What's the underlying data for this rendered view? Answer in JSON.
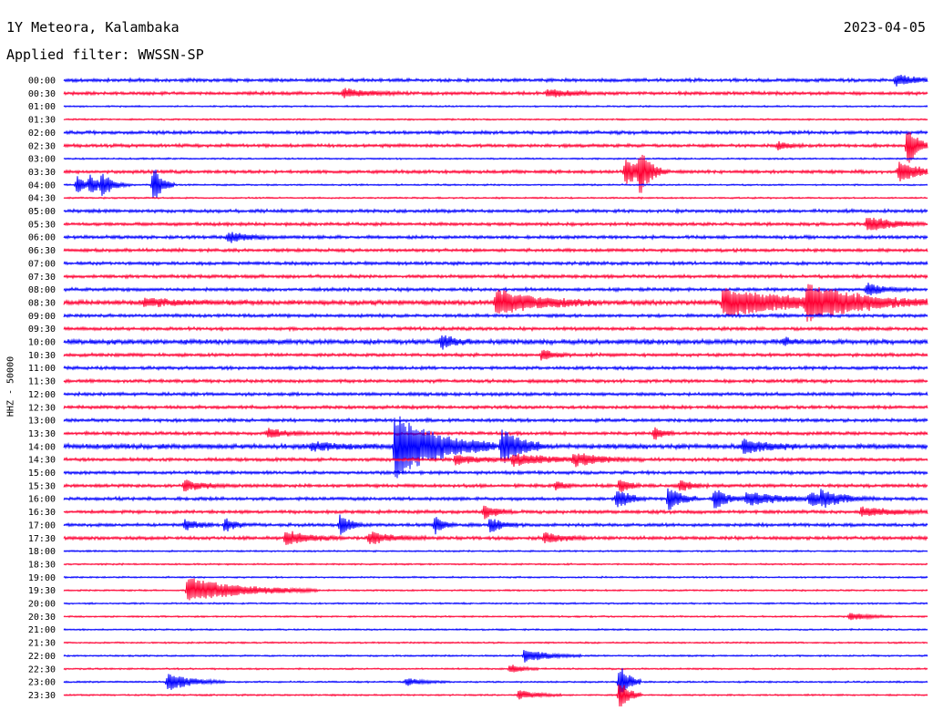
{
  "header": {
    "station": "1Y Meteora, Kalambaka",
    "date": "2023-04-05",
    "filter": "Applied filter: WWSSN-SP"
  },
  "axis_label": "HHZ - 50000",
  "colors": {
    "even": "#0000ff",
    "odd": "#ff0033"
  },
  "chart_data": {
    "type": "line",
    "title": "1Y Meteora, Kalambaka",
    "subtitle": "Applied filter: WWSSN-SP",
    "channel": "HHZ",
    "ylabel": "HHZ - 50000",
    "x_unit": "minutes after row start",
    "xlim": [
      0,
      30
    ],
    "grid": false,
    "row_labels": [
      "00:00",
      "00:30",
      "01:00",
      "01:30",
      "02:00",
      "02:30",
      "03:00",
      "03:30",
      "04:00",
      "04:30",
      "05:00",
      "05:30",
      "06:00",
      "06:30",
      "07:00",
      "07:30",
      "08:00",
      "08:30",
      "09:00",
      "09:30",
      "10:00",
      "10:30",
      "11:00",
      "11:30",
      "12:00",
      "12:30",
      "13:00",
      "13:30",
      "14:00",
      "14:30",
      "15:00",
      "15:30",
      "16:00",
      "16:30",
      "17:00",
      "17:30",
      "18:00",
      "18:30",
      "19:00",
      "19:30",
      "20:00",
      "20:30",
      "21:00",
      "21:30",
      "22:00",
      "22:30",
      "23:00",
      "23:30"
    ],
    "row_noise": [
      2,
      2,
      1,
      1,
      2,
      2,
      1,
      2,
      1,
      1,
      2,
      2,
      2,
      2,
      2,
      2,
      2,
      3,
      2,
      2,
      3,
      2,
      2,
      2,
      2,
      2,
      2,
      2,
      3,
      2,
      2,
      2,
      2,
      2,
      2,
      2,
      1,
      1,
      1,
      1,
      1,
      1,
      1,
      1,
      1,
      1,
      1,
      1
    ],
    "events": [
      {
        "row": "00:00",
        "t": 28.9,
        "amp": 6,
        "dur": 0.6
      },
      {
        "row": "00:30",
        "t": 9.7,
        "amp": 5,
        "dur": 0.8
      },
      {
        "row": "00:30",
        "t": 16.8,
        "amp": 4,
        "dur": 0.8
      },
      {
        "row": "02:30",
        "t": 24.8,
        "amp": 4,
        "dur": 0.4
      },
      {
        "row": "02:30",
        "t": 29.3,
        "amp": 26,
        "dur": 0.3
      },
      {
        "row": "03:30",
        "t": 19.5,
        "amp": 14,
        "dur": 0.6
      },
      {
        "row": "03:30",
        "t": 20.0,
        "amp": 22,
        "dur": 0.3
      },
      {
        "row": "03:30",
        "t": 29.0,
        "amp": 10,
        "dur": 0.8
      },
      {
        "row": "04:00",
        "t": 0.45,
        "amp": 10,
        "dur": 0.3
      },
      {
        "row": "04:00",
        "t": 0.9,
        "amp": 10,
        "dur": 0.3
      },
      {
        "row": "04:00",
        "t": 1.3,
        "amp": 12,
        "dur": 0.4
      },
      {
        "row": "04:00",
        "t": 3.1,
        "amp": 22,
        "dur": 0.3
      },
      {
        "row": "05:30",
        "t": 27.9,
        "amp": 8,
        "dur": 0.8
      },
      {
        "row": "06:00",
        "t": 5.7,
        "amp": 6,
        "dur": 0.6
      },
      {
        "row": "08:00",
        "t": 27.9,
        "amp": 6,
        "dur": 0.6
      },
      {
        "row": "08:30",
        "t": 2.8,
        "amp": 4,
        "dur": 1.0
      },
      {
        "row": "08:30",
        "t": 15.0,
        "amp": 14,
        "dur": 1.4
      },
      {
        "row": "08:30",
        "t": 22.9,
        "amp": 16,
        "dur": 2.2
      },
      {
        "row": "08:30",
        "t": 25.8,
        "amp": 18,
        "dur": 1.8
      },
      {
        "row": "10:00",
        "t": 13.1,
        "amp": 8,
        "dur": 0.4
      },
      {
        "row": "10:00",
        "t": 25.0,
        "amp": 4,
        "dur": 0.3
      },
      {
        "row": "10:30",
        "t": 16.6,
        "amp": 6,
        "dur": 0.4
      },
      {
        "row": "13:30",
        "t": 7.1,
        "amp": 5,
        "dur": 0.6
      },
      {
        "row": "13:30",
        "t": 20.5,
        "amp": 7,
        "dur": 0.3
      },
      {
        "row": "14:00",
        "t": 11.5,
        "amp": 36,
        "dur": 1.4
      },
      {
        "row": "14:00",
        "t": 15.2,
        "amp": 20,
        "dur": 0.6
      },
      {
        "row": "14:00",
        "t": 8.6,
        "amp": 4,
        "dur": 1.0
      },
      {
        "row": "14:00",
        "t": 23.6,
        "amp": 8,
        "dur": 0.8
      },
      {
        "row": "14:30",
        "t": 15.6,
        "amp": 6,
        "dur": 1.4
      },
      {
        "row": "14:30",
        "t": 17.7,
        "amp": 6,
        "dur": 1.0
      },
      {
        "row": "14:30",
        "t": 13.6,
        "amp": 5,
        "dur": 0.8
      },
      {
        "row": "15:30",
        "t": 4.2,
        "amp": 6,
        "dur": 0.6
      },
      {
        "row": "15:30",
        "t": 17.1,
        "amp": 5,
        "dur": 0.3
      },
      {
        "row": "15:30",
        "t": 19.3,
        "amp": 8,
        "dur": 0.3
      },
      {
        "row": "15:30",
        "t": 21.4,
        "amp": 6,
        "dur": 0.4
      },
      {
        "row": "16:00",
        "t": 19.2,
        "amp": 12,
        "dur": 0.4
      },
      {
        "row": "16:00",
        "t": 21.0,
        "amp": 14,
        "dur": 0.4
      },
      {
        "row": "16:00",
        "t": 22.6,
        "amp": 12,
        "dur": 0.4
      },
      {
        "row": "16:00",
        "t": 23.7,
        "amp": 8,
        "dur": 1.0
      },
      {
        "row": "16:00",
        "t": 25.9,
        "amp": 8,
        "dur": 0.6
      },
      {
        "row": "16:00",
        "t": 26.3,
        "amp": 6,
        "dur": 0.8
      },
      {
        "row": "16:30",
        "t": 14.6,
        "amp": 8,
        "dur": 0.4
      },
      {
        "row": "16:30",
        "t": 27.7,
        "amp": 5,
        "dur": 1.0
      },
      {
        "row": "17:00",
        "t": 4.2,
        "amp": 6,
        "dur": 0.4
      },
      {
        "row": "17:00",
        "t": 5.6,
        "amp": 8,
        "dur": 0.3
      },
      {
        "row": "17:00",
        "t": 9.6,
        "amp": 12,
        "dur": 0.3
      },
      {
        "row": "17:00",
        "t": 12.9,
        "amp": 10,
        "dur": 0.3
      },
      {
        "row": "17:00",
        "t": 14.8,
        "amp": 8,
        "dur": 0.4
      },
      {
        "row": "17:30",
        "t": 7.7,
        "amp": 8,
        "dur": 0.8
      },
      {
        "row": "17:30",
        "t": 10.6,
        "amp": 6,
        "dur": 0.8
      },
      {
        "row": "17:30",
        "t": 16.7,
        "amp": 6,
        "dur": 0.6
      },
      {
        "row": "19:30",
        "t": 4.3,
        "amp": 14,
        "dur": 1.8
      },
      {
        "row": "20:30",
        "t": 27.3,
        "amp": 4,
        "dur": 0.6
      },
      {
        "row": "22:00",
        "t": 16.0,
        "amp": 7,
        "dur": 0.8
      },
      {
        "row": "22:30",
        "t": 15.5,
        "amp": 5,
        "dur": 0.4
      },
      {
        "row": "23:00",
        "t": 3.6,
        "amp": 10,
        "dur": 0.8
      },
      {
        "row": "23:00",
        "t": 11.9,
        "amp": 4,
        "dur": 0.6
      },
      {
        "row": "23:00",
        "t": 19.3,
        "amp": 22,
        "dur": 0.3
      },
      {
        "row": "23:30",
        "t": 15.8,
        "amp": 5,
        "dur": 0.6
      },
      {
        "row": "23:30",
        "t": 19.3,
        "amp": 18,
        "dur": 0.3
      }
    ]
  }
}
